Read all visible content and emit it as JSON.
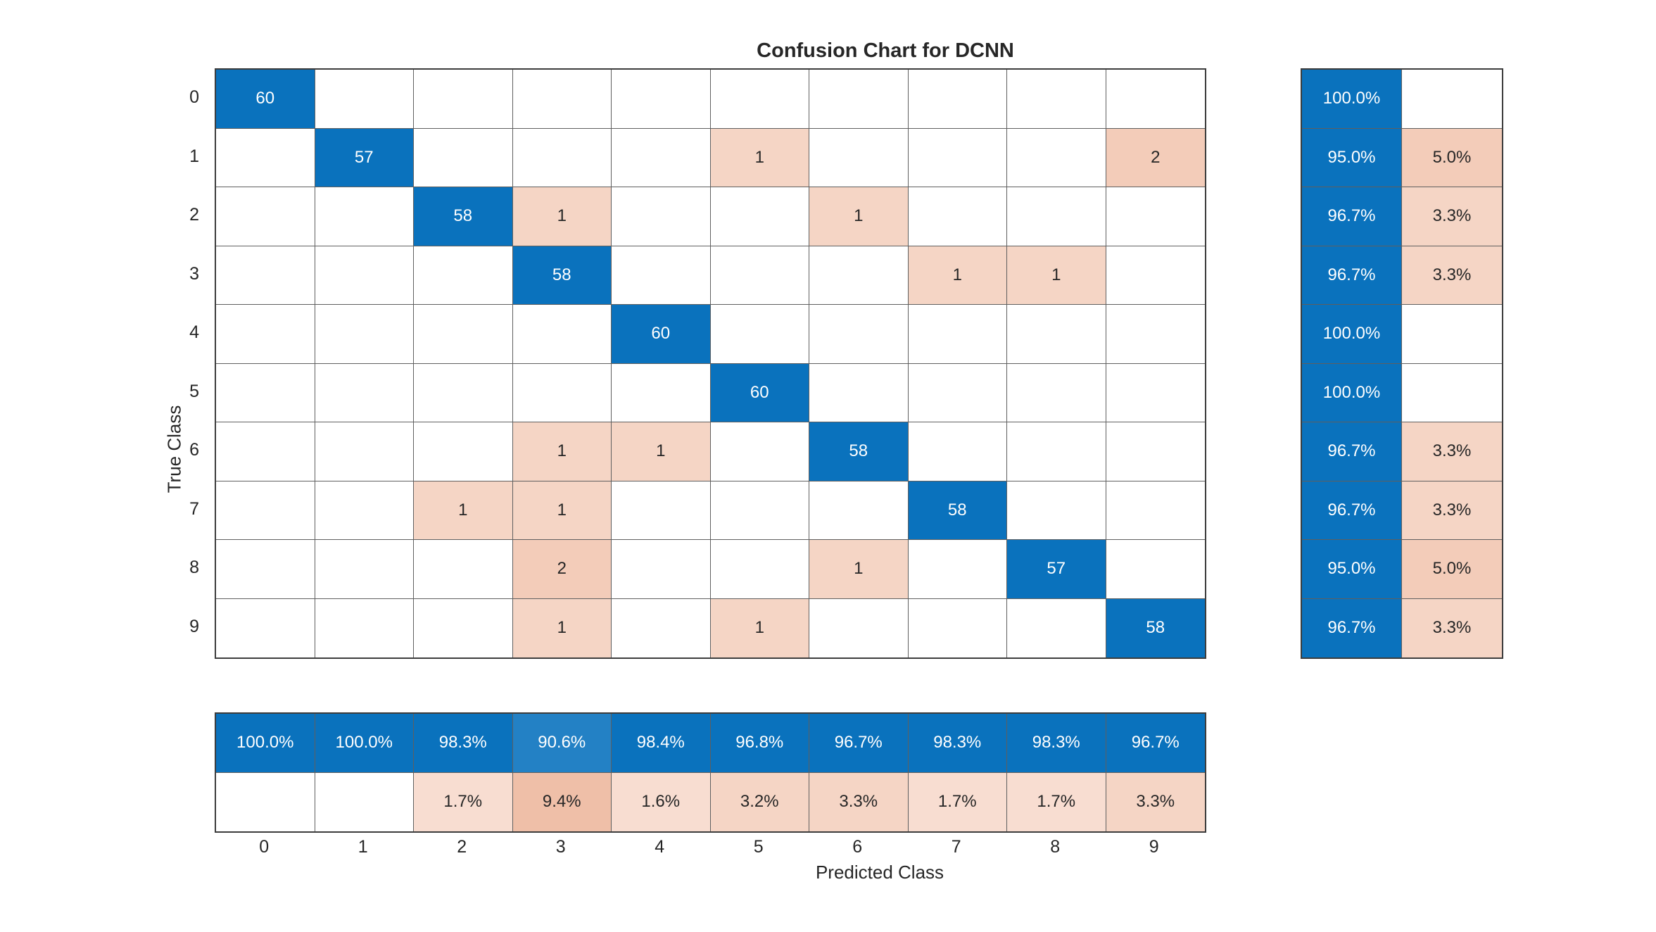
{
  "chart_data": {
    "type": "heatmap",
    "subtype": "confusion-matrix",
    "title": "Confusion Chart for DCNN",
    "xlabel": "Predicted Class",
    "ylabel": "True Class",
    "classes": [
      "0",
      "1",
      "2",
      "3",
      "4",
      "5",
      "6",
      "7",
      "8",
      "9"
    ],
    "matrix": [
      [
        60,
        null,
        null,
        null,
        null,
        null,
        null,
        null,
        null,
        null
      ],
      [
        null,
        57,
        null,
        null,
        null,
        1,
        null,
        null,
        null,
        2
      ],
      [
        null,
        null,
        58,
        1,
        null,
        null,
        1,
        null,
        null,
        null
      ],
      [
        null,
        null,
        null,
        58,
        null,
        null,
        null,
        1,
        1,
        null
      ],
      [
        null,
        null,
        null,
        null,
        60,
        null,
        null,
        null,
        null,
        null
      ],
      [
        null,
        null,
        null,
        null,
        null,
        60,
        null,
        null,
        null,
        null
      ],
      [
        null,
        null,
        null,
        1,
        1,
        null,
        58,
        null,
        null,
        null
      ],
      [
        null,
        null,
        1,
        1,
        null,
        null,
        null,
        58,
        null,
        null
      ],
      [
        null,
        null,
        null,
        2,
        null,
        null,
        1,
        null,
        57,
        null
      ],
      [
        null,
        null,
        null,
        1,
        null,
        1,
        null,
        null,
        null,
        58
      ]
    ],
    "row_summary": {
      "correct": [
        "100.0%",
        "95.0%",
        "96.7%",
        "96.7%",
        "100.0%",
        "100.0%",
        "96.7%",
        "96.7%",
        "95.0%",
        "96.7%"
      ],
      "incorrect": [
        "",
        "5.0%",
        "3.3%",
        "3.3%",
        "",
        "",
        "3.3%",
        "3.3%",
        "5.0%",
        "3.3%"
      ]
    },
    "col_summary": {
      "correct": [
        "100.0%",
        "100.0%",
        "98.3%",
        "90.6%",
        "98.4%",
        "96.8%",
        "96.7%",
        "98.3%",
        "98.3%",
        "96.7%"
      ],
      "incorrect": [
        "",
        "",
        "1.7%",
        "9.4%",
        "1.6%",
        "3.2%",
        "3.3%",
        "1.7%",
        "1.7%",
        "3.3%"
      ]
    },
    "grid": true,
    "legend_position": "none"
  },
  "palette": {
    "diagonal_blue": "#0a72bd",
    "diagonal_blue_light": "#2381c5",
    "pink_light": "#f8ddd1",
    "pink_mid": "#f5d5c5",
    "pink_deep": "#f3ccb9",
    "pink_strong": "#efbfa8",
    "empty_cell": "#ffffff",
    "text_on_blue": "#ffffff",
    "text_dark": "#262626",
    "grid_line": "#5f5f5f",
    "outer_border": "#3c3c3c"
  }
}
